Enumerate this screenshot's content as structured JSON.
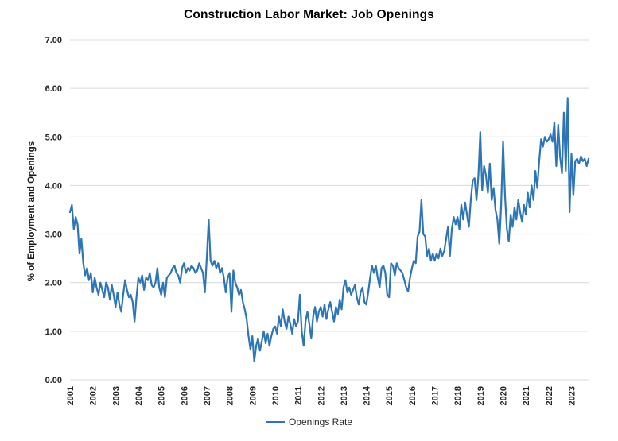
{
  "title": "Construction Labor Market: Job Openings",
  "y_axis_title": "% of Employment and Openings",
  "legend": {
    "label": "Openings Rate"
  },
  "colors": {
    "line": "#2E75B6",
    "gridline": "#D9D9D9",
    "tick_text": "#262626",
    "background": "#FFFFFF"
  },
  "chart_data": {
    "type": "line",
    "title": "Construction Labor Market: Job Openings",
    "xlabel": "",
    "ylabel": "% of Employment and Openings",
    "ylim": [
      0,
      7
    ],
    "ytick_step": 1,
    "ytick_decimals": 2,
    "grid": "horizontal",
    "legend_position": "bottom",
    "x_start": {
      "year": 2001,
      "month": 1
    },
    "x_end": {
      "year": 2023,
      "month": 10
    },
    "x_tick_years": [
      2001,
      2002,
      2003,
      2004,
      2005,
      2006,
      2007,
      2008,
      2009,
      2010,
      2011,
      2012,
      2013,
      2014,
      2015,
      2016,
      2017,
      2018,
      2019,
      2020,
      2021,
      2022,
      2023
    ],
    "series": [
      {
        "name": "Openings Rate",
        "color": "#2E75B6",
        "frequency": "monthly",
        "monthly_values": [
          3.45,
          3.6,
          3.1,
          3.35,
          3.2,
          2.6,
          2.9,
          2.4,
          2.15,
          2.3,
          2.05,
          2.2,
          1.8,
          2.1,
          1.9,
          1.75,
          2.0,
          1.85,
          1.7,
          2.0,
          1.9,
          1.65,
          1.95,
          1.75,
          1.5,
          1.8,
          1.55,
          1.4,
          1.75,
          2.05,
          1.85,
          1.7,
          1.75,
          1.6,
          1.2,
          1.7,
          2.1,
          2.0,
          2.15,
          1.85,
          2.1,
          2.05,
          2.2,
          1.95,
          1.9,
          2.0,
          2.3,
          1.9,
          1.75,
          2.0,
          1.7,
          2.1,
          2.15,
          2.2,
          2.3,
          2.35,
          2.2,
          2.15,
          2.0,
          2.3,
          2.4,
          2.2,
          2.3,
          2.25,
          2.35,
          2.3,
          2.2,
          2.25,
          2.4,
          2.3,
          2.2,
          1.8,
          2.5,
          3.3,
          2.45,
          2.35,
          2.45,
          2.3,
          2.4,
          2.2,
          2.3,
          2.1,
          1.8,
          2.1,
          2.2,
          1.4,
          2.25,
          2.0,
          1.9,
          1.75,
          1.85,
          1.6,
          1.45,
          1.25,
          0.9,
          0.62,
          0.9,
          0.38,
          0.7,
          0.85,
          0.6,
          0.8,
          1.0,
          0.75,
          0.95,
          0.7,
          0.9,
          1.05,
          1.1,
          0.95,
          1.3,
          1.1,
          1.45,
          1.2,
          1.05,
          1.3,
          1.15,
          0.95,
          1.25,
          1.1,
          1.2,
          1.75,
          1.0,
          0.7,
          1.2,
          1.4,
          1.15,
          0.85,
          1.3,
          1.5,
          1.2,
          1.4,
          1.5,
          1.3,
          1.55,
          1.25,
          1.45,
          1.6,
          1.4,
          1.2,
          1.5,
          1.35,
          1.65,
          1.45,
          1.9,
          2.05,
          1.8,
          1.9,
          1.75,
          1.85,
          1.95,
          1.7,
          1.55,
          1.8,
          1.9,
          1.6,
          1.55,
          1.8,
          2.1,
          2.35,
          2.2,
          2.35,
          2.1,
          1.9,
          2.3,
          2.35,
          2.2,
          1.75,
          1.7,
          2.4,
          2.35,
          2.15,
          2.4,
          2.3,
          2.25,
          2.2,
          2.05,
          1.9,
          1.82,
          2.1,
          2.3,
          2.45,
          2.4,
          2.95,
          3.05,
          3.7,
          3.0,
          2.95,
          2.55,
          2.7,
          2.45,
          2.6,
          2.45,
          2.6,
          2.5,
          2.7,
          2.55,
          2.65,
          2.9,
          3.15,
          2.55,
          3.1,
          3.35,
          3.2,
          3.35,
          3.1,
          3.6,
          3.3,
          3.65,
          3.4,
          3.15,
          3.7,
          4.1,
          4.15,
          3.7,
          4.2,
          5.1,
          3.9,
          4.4,
          4.2,
          3.85,
          4.45,
          3.7,
          3.95,
          3.5,
          3.3,
          2.8,
          3.6,
          4.9,
          3.8,
          3.1,
          2.85,
          3.4,
          3.15,
          3.55,
          3.3,
          3.7,
          3.45,
          3.25,
          3.6,
          3.4,
          3.85,
          3.55,
          4.0,
          3.7,
          4.3,
          3.95,
          4.5,
          4.95,
          4.8,
          5.0,
          4.9,
          4.95,
          5.05,
          4.9,
          5.3,
          4.4,
          5.25,
          4.6,
          4.25,
          5.5,
          4.3,
          5.8,
          3.45,
          4.65,
          3.8,
          4.5,
          4.55,
          4.45,
          4.6,
          4.5,
          4.55,
          4.4,
          4.55
        ]
      }
    ]
  }
}
